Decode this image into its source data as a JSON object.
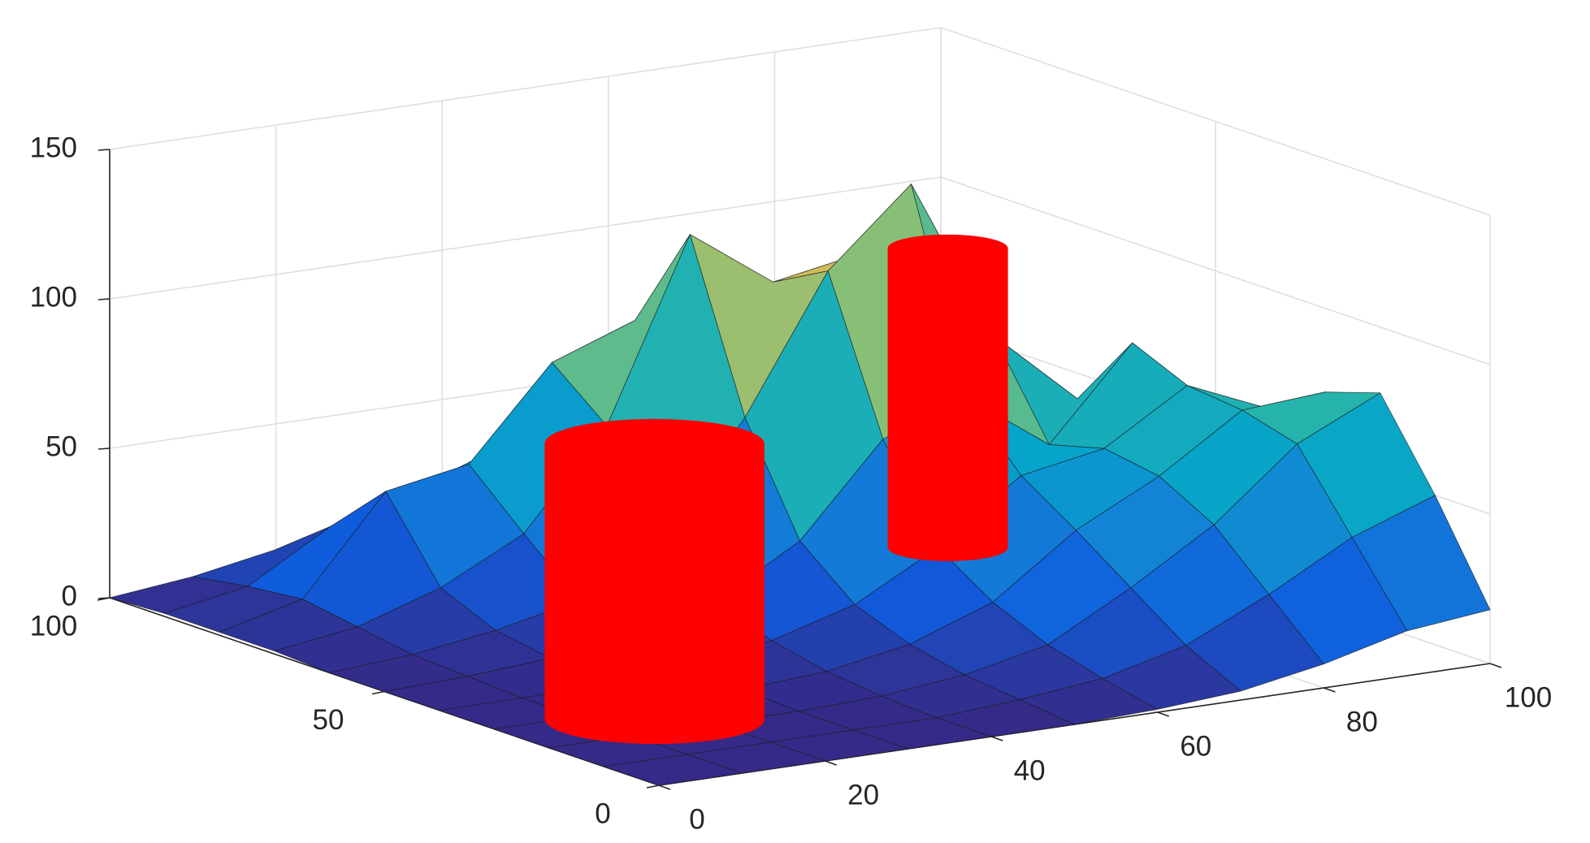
{
  "chart_data": {
    "type": "surface",
    "x": [
      0,
      10,
      20,
      30,
      40,
      50,
      60,
      70,
      80,
      90,
      100
    ],
    "y": [
      0,
      10,
      20,
      30,
      40,
      50,
      60,
      70,
      80,
      90,
      100
    ],
    "z": [
      [
        0,
        0,
        0,
        0,
        0,
        0,
        1,
        3,
        8,
        15,
        18
      ],
      [
        0,
        0,
        0,
        0,
        0,
        2,
        5,
        12,
        25,
        40,
        50
      ],
      [
        0,
        0,
        0,
        0,
        1,
        4,
        10,
        25,
        42,
        65,
        78
      ],
      [
        0,
        0,
        0,
        1,
        3,
        8,
        18,
        38,
        52,
        70,
        72
      ],
      [
        0,
        0,
        1,
        3,
        7,
        15,
        30,
        50,
        55,
        72,
        60
      ],
      [
        0,
        1,
        3,
        6,
        14,
        30,
        60,
        70,
        50,
        80,
        45
      ],
      [
        0,
        2,
        6,
        12,
        30,
        65,
        110,
        135,
        80,
        55,
        25
      ],
      [
        1,
        5,
        14,
        28,
        60,
        120,
        100,
        105,
        55,
        30,
        12
      ],
      [
        1,
        8,
        40,
        45,
        75,
        85,
        60,
        50,
        28,
        14,
        5
      ],
      [
        1,
        6,
        22,
        30,
        40,
        35,
        25,
        18,
        10,
        5,
        2
      ],
      [
        0,
        3,
        8,
        12,
        14,
        12,
        8,
        5,
        3,
        1,
        0
      ]
    ],
    "colormap": [
      "#352a87",
      "#0f5cdd",
      "#1481d6",
      "#06a4ca",
      "#2eb7a4",
      "#87bf77",
      "#d1bb59",
      "#fec832",
      "#f9fb0e"
    ],
    "xlim": [
      0,
      100
    ],
    "xticks": [
      0,
      20,
      40,
      60,
      80,
      100
    ],
    "ylim": [
      0,
      100
    ],
    "yticks": [
      0,
      50,
      100
    ],
    "zlim": [
      0,
      150
    ],
    "zticks": [
      0,
      50,
      100,
      150
    ],
    "grid": true,
    "obstacles": [
      {
        "x": 16,
        "y": 25,
        "radius": 11,
        "height": 92,
        "color": "#ff0000"
      },
      {
        "x": 83,
        "y": 73,
        "radius": 6,
        "height": 100,
        "color": "#ff0000"
      }
    ]
  }
}
